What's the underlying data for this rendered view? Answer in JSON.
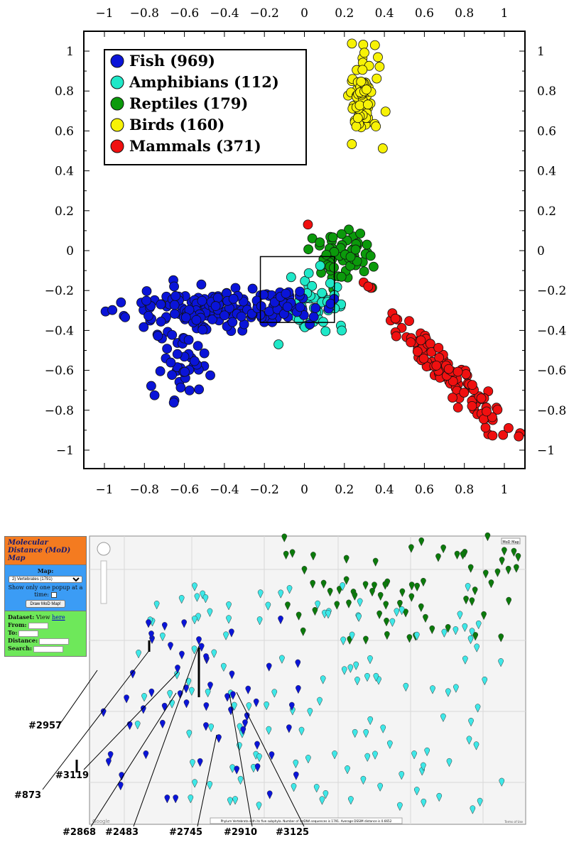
{
  "chart_data": {
    "type": "scatter",
    "title": "",
    "xlabel": "",
    "ylabel": "",
    "xlim": [
      -1.1,
      1.1
    ],
    "ylim": [
      -1.1,
      1.1
    ],
    "x_ticks": [
      "−1",
      "−0.8",
      "−0.6",
      "−0.4",
      "−0.2",
      "0",
      "0.2",
      "0.4",
      "0.6",
      "0.8",
      "1"
    ],
    "y_ticks": [
      "1",
      "0.8",
      "0.6",
      "0.4",
      "0.2",
      "0",
      "−0.2",
      "−0.4",
      "−0.6",
      "−0.8",
      "−1"
    ],
    "legend_position": "top-left",
    "zoom_box": {
      "x0": -0.22,
      "x1": 0.15,
      "y0": -0.36,
      "y1": -0.03
    },
    "series": [
      {
        "name": "Fish (969)",
        "color": "#0a14d8",
        "count": 969,
        "clusters": [
          {
            "cx": -0.45,
            "cy": -0.29,
            "sx": 0.22,
            "sy": 0.05,
            "n": 160
          },
          {
            "cx": -0.62,
            "cy": -0.58,
            "sx": 0.06,
            "sy": 0.09,
            "n": 40
          },
          {
            "cx": -0.12,
            "cy": -0.25,
            "sx": 0.06,
            "sy": 0.04,
            "n": 25
          }
        ]
      },
      {
        "name": "Amphibians (112)",
        "color": "#1fe8c8",
        "count": 112,
        "clusters": [
          {
            "cx": 0.06,
            "cy": -0.26,
            "sx": 0.07,
            "sy": 0.06,
            "n": 50
          }
        ]
      },
      {
        "name": "Reptiles (179)",
        "color": "#0b9a0b",
        "count": 179,
        "clusters": [
          {
            "cx": 0.2,
            "cy": -0.02,
            "sx": 0.08,
            "sy": 0.07,
            "n": 70
          }
        ]
      },
      {
        "name": "Birds (160)",
        "color": "#f7f206",
        "count": 160,
        "clusters": [
          {
            "cx": 0.29,
            "cy": 0.76,
            "sx": 0.035,
            "sy": 0.12,
            "n": 80
          }
        ]
      },
      {
        "name": "Mammals (371)",
        "color": "#f01010",
        "count": 371,
        "clusters": [
          {
            "cx": 0.72,
            "cy": -0.62,
            "sx": 0.12,
            "sy": 0.12,
            "n": 120
          }
        ]
      }
    ]
  },
  "map_panel": {
    "title": "Molecular Distance (MoD) Map",
    "map_header": "Map:",
    "map_select": "2) Vertebrates (1791)",
    "popup_option": "Show only one popup at a time:",
    "draw_button": "Draw MoD Map!",
    "dataset_label": "Dataset:",
    "dataset_view": "View",
    "dataset_link": "here",
    "from_label": "From:",
    "to_label": "To:",
    "distance_label": "Distance:",
    "search_label": "Search:"
  },
  "map_view": {
    "maptype_button": "MoD Map",
    "google_logo": "Google",
    "terms_link": "Terms of Use",
    "status_bar": "Phylum Vertebrata with its five subphyla. Number of mtDNA sequences is 1791. Average DSSIM distance is 0.6652",
    "pin_colors": {
      "fish": "#0a14d8",
      "amphibian": "#3ee8e8",
      "reptile": "#0b7a0b"
    },
    "labels": [
      "#2957",
      "#873",
      "#3119",
      "#2868",
      "#2483",
      "#2745",
      "#2910",
      "#3125"
    ]
  }
}
